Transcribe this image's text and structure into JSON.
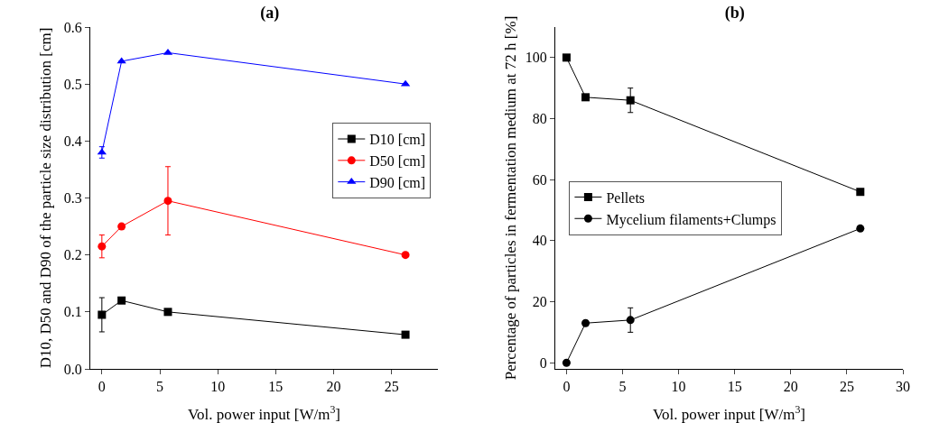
{
  "chart_data": [
    {
      "type": "line",
      "title": "(a)",
      "xlabel": "Vol. power input [W/m$^{3}$]",
      "ylabel": "D10, D50 and D90 of the particle size distribution [cm]",
      "x": [
        0,
        1.7,
        5.7,
        26.2
      ],
      "xlim": [
        -1,
        29
      ],
      "xticks": [
        0,
        5,
        10,
        15,
        20,
        25
      ],
      "ylim": [
        0,
        0.6
      ],
      "yticks": [
        {
          "value": 0,
          "label": "0.0"
        },
        0.1,
        0.2,
        0.3,
        0.4,
        0.5,
        0.6
      ],
      "grid": false,
      "legend": "right",
      "line_style": "solid",
      "series": [
        {
          "name": "D10 [cm]",
          "color": "#000000",
          "marker": "square",
          "values": [
            0.095,
            0.12,
            0.1,
            0.06
          ],
          "errors": [
            0.03,
            null,
            null,
            null
          ]
        },
        {
          "name": "D50 [cm]",
          "color": "#ff0000",
          "marker": "circle",
          "values": [
            0.215,
            0.25,
            0.295,
            0.2
          ],
          "errors": [
            0.02,
            null,
            0.06,
            null
          ]
        },
        {
          "name": "D90 [cm]",
          "color": "#0000ff",
          "marker": "triangle",
          "values": [
            0.38,
            0.54,
            0.555,
            0.5
          ],
          "errors": [
            0.01,
            null,
            null,
            null
          ]
        }
      ]
    },
    {
      "type": "line",
      "title": "(b)",
      "xlabel": "Vol. power input [W/m$^{3}$]",
      "ylabel": "Percentage of particles in fermentation medium at 72 h [%]",
      "x": [
        0,
        1.7,
        5.7,
        26.2
      ],
      "xlim": [
        -1,
        30
      ],
      "xticks": [
        0,
        5,
        10,
        15,
        20,
        25,
        30
      ],
      "ylim": [
        -2,
        110
      ],
      "yticks": [
        0,
        20,
        40,
        60,
        80,
        100
      ],
      "grid": false,
      "legend": "left",
      "line_style": "solid",
      "series": [
        {
          "name": "Pellets",
          "color": "#000000",
          "marker": "square",
          "values": [
            100,
            87,
            86,
            56
          ],
          "errors": [
            null,
            null,
            4,
            null
          ]
        },
        {
          "name": "Mycelium filaments+Clumps",
          "color": "#000000",
          "marker": "circle",
          "values": [
            0,
            13,
            14,
            44
          ],
          "errors": [
            null,
            null,
            4,
            null
          ]
        }
      ]
    }
  ]
}
